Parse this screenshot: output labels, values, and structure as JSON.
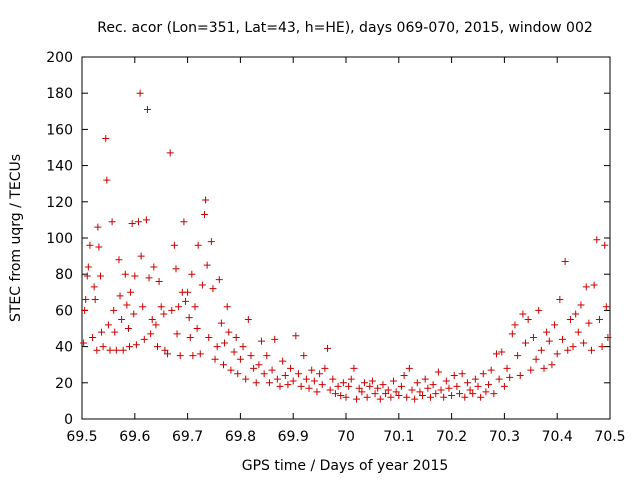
{
  "chart_data": {
    "type": "scatter",
    "title": "Rec. acor (Lon=351, Lat=43, h=HE), days 069-070, 2015, window 002",
    "xlabel": "GPS time / Days of year 2015",
    "ylabel": "STEC from uqrg / TECUs",
    "xlim": [
      69.5,
      70.5
    ],
    "ylim": [
      0,
      200
    ],
    "xticks": [
      69.5,
      69.6,
      69.7,
      69.8,
      69.9,
      70,
      70.1,
      70.2,
      70.3,
      70.4,
      70.5
    ],
    "xtick_labels": [
      "69.5",
      "69.6",
      "69.7",
      "69.8",
      "69.9",
      "70",
      "70.1",
      "70.2",
      "70.3",
      "70.4",
      "70.5"
    ],
    "yticks": [
      0,
      20,
      40,
      60,
      80,
      100,
      120,
      140,
      160,
      180,
      200
    ],
    "ytick_labels": [
      "0",
      "20",
      "40",
      "60",
      "80",
      "100",
      "120",
      "140",
      "160",
      "180",
      "200"
    ],
    "marker": "+",
    "color": "#cc0000",
    "series": [
      {
        "name": "STEC",
        "points": [
          [
            69.503,
            42
          ],
          [
            69.505,
            60
          ],
          [
            69.507,
            66
          ],
          [
            69.51,
            79
          ],
          [
            69.512,
            84
          ],
          [
            69.515,
            96
          ],
          [
            69.52,
            45
          ],
          [
            69.523,
            73
          ],
          [
            69.525,
            66
          ],
          [
            69.528,
            38
          ],
          [
            69.53,
            106
          ],
          [
            69.532,
            95
          ],
          [
            69.535,
            79
          ],
          [
            69.537,
            48
          ],
          [
            69.54,
            40
          ],
          [
            69.545,
            155
          ],
          [
            69.547,
            132
          ],
          [
            69.55,
            52
          ],
          [
            69.553,
            38
          ],
          [
            69.557,
            109
          ],
          [
            69.56,
            60
          ],
          [
            69.562,
            48
          ],
          [
            69.565,
            38
          ],
          [
            69.57,
            88
          ],
          [
            69.572,
            68
          ],
          [
            69.575,
            55
          ],
          [
            69.578,
            38
          ],
          [
            69.582,
            80
          ],
          [
            69.585,
            63
          ],
          [
            69.588,
            50
          ],
          [
            69.59,
            40
          ],
          [
            69.592,
            70
          ],
          [
            69.595,
            108
          ],
          [
            69.598,
            58
          ],
          [
            69.6,
            79
          ],
          [
            69.603,
            41
          ],
          [
            69.607,
            109
          ],
          [
            69.61,
            180
          ],
          [
            69.612,
            90
          ],
          [
            69.615,
            62
          ],
          [
            69.618,
            44
          ],
          [
            69.622,
            110
          ],
          [
            69.624,
            171
          ],
          [
            69.627,
            78
          ],
          [
            69.63,
            47
          ],
          [
            69.633,
            55
          ],
          [
            69.636,
            84
          ],
          [
            69.64,
            52
          ],
          [
            69.643,
            40
          ],
          [
            69.646,
            76
          ],
          [
            69.65,
            62
          ],
          [
            69.655,
            58
          ],
          [
            69.657,
            38
          ],
          [
            69.662,
            36
          ],
          [
            69.667,
            147
          ],
          [
            69.67,
            60
          ],
          [
            69.675,
            96
          ],
          [
            69.678,
            83
          ],
          [
            69.68,
            47
          ],
          [
            69.683,
            62
          ],
          [
            69.686,
            35
          ],
          [
            69.69,
            70
          ],
          [
            69.693,
            109
          ],
          [
            69.696,
            65
          ],
          [
            69.7,
            70
          ],
          [
            69.703,
            56
          ],
          [
            69.705,
            45
          ],
          [
            69.708,
            80
          ],
          [
            69.71,
            35
          ],
          [
            69.714,
            62
          ],
          [
            69.718,
            50
          ],
          [
            69.72,
            96
          ],
          [
            69.724,
            36
          ],
          [
            69.728,
            74
          ],
          [
            69.732,
            113
          ],
          [
            69.734,
            121
          ],
          [
            69.737,
            85
          ],
          [
            69.74,
            45
          ],
          [
            69.745,
            98
          ],
          [
            69.748,
            72
          ],
          [
            69.752,
            33
          ],
          [
            69.756,
            40
          ],
          [
            69.76,
            77
          ],
          [
            69.764,
            53
          ],
          [
            69.768,
            30
          ],
          [
            69.77,
            42
          ],
          [
            69.775,
            62
          ],
          [
            69.778,
            48
          ],
          [
            69.782,
            27
          ],
          [
            69.788,
            37
          ],
          [
            69.792,
            45
          ],
          [
            69.795,
            25
          ],
          [
            69.8,
            33
          ],
          [
            69.805,
            40
          ],
          [
            69.81,
            22
          ],
          [
            69.815,
            55
          ],
          [
            69.82,
            35
          ],
          [
            69.825,
            28
          ],
          [
            69.83,
            20
          ],
          [
            69.835,
            30
          ],
          [
            69.84,
            43
          ],
          [
            69.845,
            25
          ],
          [
            69.85,
            35
          ],
          [
            69.855,
            20
          ],
          [
            69.86,
            27
          ],
          [
            69.865,
            44
          ],
          [
            69.87,
            22
          ],
          [
            69.875,
            18
          ],
          [
            69.88,
            32
          ],
          [
            69.885,
            24
          ],
          [
            69.89,
            19
          ],
          [
            69.895,
            28
          ],
          [
            69.9,
            21
          ],
          [
            69.905,
            46
          ],
          [
            69.91,
            25
          ],
          [
            69.915,
            18
          ],
          [
            69.92,
            35
          ],
          [
            69.925,
            22
          ],
          [
            69.93,
            17
          ],
          [
            69.935,
            27
          ],
          [
            69.94,
            21
          ],
          [
            69.945,
            15
          ],
          [
            69.95,
            25
          ],
          [
            69.955,
            19
          ],
          [
            69.96,
            28
          ],
          [
            69.965,
            39
          ],
          [
            69.97,
            16
          ],
          [
            69.975,
            22
          ],
          [
            69.98,
            14
          ],
          [
            69.985,
            18
          ],
          [
            69.99,
            13
          ],
          [
            69.995,
            20
          ],
          [
            70,
            12
          ],
          [
            70.005,
            18
          ],
          [
            70.01,
            22
          ],
          [
            70.015,
            28
          ],
          [
            70.02,
            11
          ],
          [
            70.025,
            17
          ],
          [
            70.03,
            15
          ],
          [
            70.035,
            20
          ],
          [
            70.04,
            12
          ],
          [
            70.045,
            18
          ],
          [
            70.05,
            21
          ],
          [
            70.055,
            14
          ],
          [
            70.06,
            17
          ],
          [
            70.065,
            11
          ],
          [
            70.07,
            19
          ],
          [
            70.075,
            14
          ],
          [
            70.08,
            16
          ],
          [
            70.085,
            12
          ],
          [
            70.09,
            21
          ],
          [
            70.095,
            15
          ],
          [
            70.1,
            13
          ],
          [
            70.105,
            18
          ],
          [
            70.11,
            24
          ],
          [
            70.115,
            12
          ],
          [
            70.12,
            28
          ],
          [
            70.125,
            16
          ],
          [
            70.13,
            11
          ],
          [
            70.135,
            20
          ],
          [
            70.14,
            15
          ],
          [
            70.145,
            13
          ],
          [
            70.15,
            22
          ],
          [
            70.155,
            17
          ],
          [
            70.16,
            12
          ],
          [
            70.165,
            19
          ],
          [
            70.17,
            14
          ],
          [
            70.175,
            26
          ],
          [
            70.18,
            16
          ],
          [
            70.185,
            12
          ],
          [
            70.19,
            21
          ],
          [
            70.195,
            17
          ],
          [
            70.2,
            13
          ],
          [
            70.205,
            24
          ],
          [
            70.21,
            18
          ],
          [
            70.215,
            14
          ],
          [
            70.22,
            25
          ],
          [
            70.225,
            12
          ],
          [
            70.23,
            20
          ],
          [
            70.235,
            16
          ],
          [
            70.24,
            14
          ],
          [
            70.245,
            22
          ],
          [
            70.25,
            18
          ],
          [
            70.255,
            12
          ],
          [
            70.26,
            25
          ],
          [
            70.265,
            15
          ],
          [
            70.27,
            19
          ],
          [
            70.275,
            27
          ],
          [
            70.28,
            14
          ],
          [
            70.285,
            36
          ],
          [
            70.29,
            22
          ],
          [
            70.295,
            37
          ],
          [
            70.3,
            18
          ],
          [
            70.305,
            28
          ],
          [
            70.31,
            23
          ],
          [
            70.315,
            47
          ],
          [
            70.32,
            52
          ],
          [
            70.325,
            35
          ],
          [
            70.33,
            24
          ],
          [
            70.335,
            58
          ],
          [
            70.34,
            42
          ],
          [
            70.345,
            55
          ],
          [
            70.35,
            27
          ],
          [
            70.355,
            45
          ],
          [
            70.36,
            33
          ],
          [
            70.365,
            60
          ],
          [
            70.37,
            38
          ],
          [
            70.375,
            28
          ],
          [
            70.38,
            48
          ],
          [
            70.385,
            43
          ],
          [
            70.39,
            30
          ],
          [
            70.395,
            52
          ],
          [
            70.4,
            36
          ],
          [
            70.405,
            66
          ],
          [
            70.41,
            44
          ],
          [
            70.415,
            87
          ],
          [
            70.42,
            38
          ],
          [
            70.425,
            55
          ],
          [
            70.43,
            40
          ],
          [
            70.435,
            58
          ],
          [
            70.44,
            48
          ],
          [
            70.445,
            63
          ],
          [
            70.45,
            42
          ],
          [
            70.455,
            73
          ],
          [
            70.46,
            53
          ],
          [
            70.465,
            38
          ],
          [
            70.47,
            74
          ],
          [
            70.475,
            99
          ],
          [
            70.48,
            55
          ],
          [
            70.485,
            40
          ],
          [
            70.49,
            96
          ],
          [
            70.493,
            62
          ],
          [
            70.496,
            45
          ]
        ]
      }
    ]
  }
}
